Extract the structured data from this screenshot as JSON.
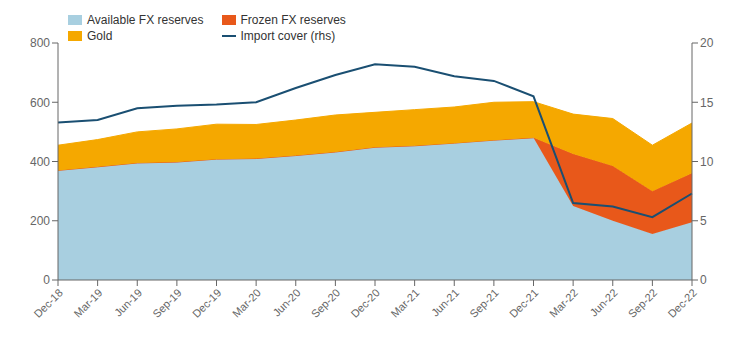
{
  "chart_data": {
    "type": "area",
    "stacked": true,
    "categories": [
      "Dec-18",
      "Mar-19",
      "Jun-19",
      "Sep-19",
      "Dec-19",
      "Mar-20",
      "Jun-20",
      "Sep-20",
      "Dec-20",
      "Mar-21",
      "Jun-21",
      "Sep-21",
      "Dec-21",
      "Mar-22",
      "Jun-22",
      "Sep-22",
      "Dec-22"
    ],
    "series": [
      {
        "name": "Available FX reserves",
        "color": "#a8cfe0",
        "values": [
          370,
          382,
          395,
          398,
          408,
          410,
          420,
          432,
          448,
          453,
          462,
          472,
          480,
          250,
          200,
          155,
          195
        ]
      },
      {
        "name": "Frozen FX reserves",
        "color": "#e8581a",
        "values": [
          0,
          0,
          0,
          0,
          0,
          0,
          0,
          0,
          0,
          0,
          0,
          0,
          0,
          175,
          185,
          145,
          165
        ]
      },
      {
        "name": "Gold",
        "color": "#f5a800",
        "values": [
          85,
          92,
          105,
          112,
          118,
          115,
          120,
          125,
          118,
          122,
          122,
          128,
          122,
          135,
          160,
          155,
          170
        ]
      },
      {
        "name": "Import cover (rhs)",
        "color": "#1a4f72",
        "type": "line",
        "axis": "y2",
        "values": [
          13.3,
          13.5,
          14.5,
          14.7,
          14.8,
          15.0,
          16.2,
          17.3,
          18.2,
          18.0,
          17.2,
          16.8,
          15.5,
          6.5,
          6.2,
          5.3,
          7.3
        ]
      }
    ],
    "ylim": [
      0,
      800
    ],
    "yticks": [
      0,
      200,
      400,
      600,
      800
    ],
    "y2lim": [
      0,
      20
    ],
    "y2ticks": [
      0,
      5,
      10,
      15,
      20
    ],
    "legend": "upper left",
    "grid": false
  }
}
